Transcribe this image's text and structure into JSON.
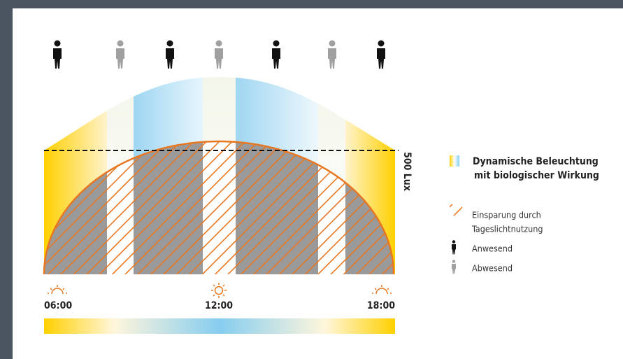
{
  "diagram": {
    "lux_label": "500 Lux",
    "times": [
      "06:00",
      "12:00",
      "18:00"
    ],
    "legend": {
      "dynamic": [
        "Dynamische Beleuchtung",
        "mit biologischer Wirkung"
      ],
      "savings": [
        "Einsparung durch",
        "Tageslichtnutzung"
      ],
      "present": "Anwesend",
      "absent": "Abwesend"
    }
  }
}
